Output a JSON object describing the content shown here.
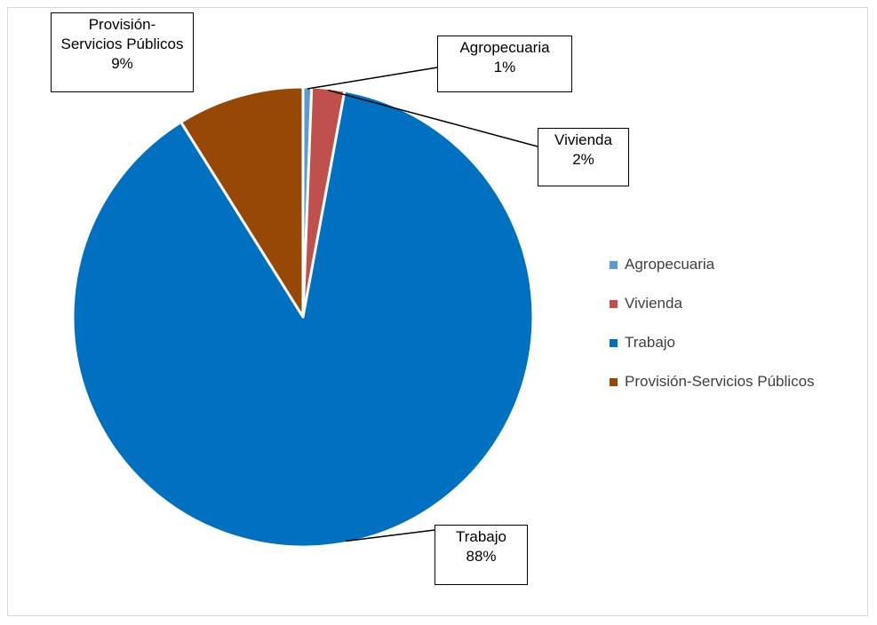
{
  "chart_data": {
    "type": "pie",
    "title": "",
    "slices": [
      {
        "label": "Agropecuaria",
        "value": 0.6,
        "display": "1%",
        "color": "#5b9bd5"
      },
      {
        "label": "Vivienda",
        "value": 2.3,
        "display": "2%",
        "color": "#c0504d"
      },
      {
        "label": "Trabajo",
        "value": 88.2,
        "display": "88%",
        "color": "#0070c0"
      },
      {
        "label": "Provisión-Servicios Públicos",
        "value": 8.9,
        "display": "9%",
        "color": "#974706"
      }
    ],
    "data_labels": [
      {
        "lines": [
          "Agropecuaria",
          "1%"
        ]
      },
      {
        "lines": [
          "Vivienda",
          "2%"
        ]
      },
      {
        "lines": [
          "Trabajo",
          "88%"
        ]
      },
      {
        "lines": [
          "Provisión-",
          "Servicios Públicos",
          "9%"
        ]
      }
    ],
    "legend": {
      "position": "right",
      "items": [
        "Agropecuaria",
        "Vivienda",
        "Trabajo",
        "Provisión-Servicios Públicos"
      ]
    }
  }
}
